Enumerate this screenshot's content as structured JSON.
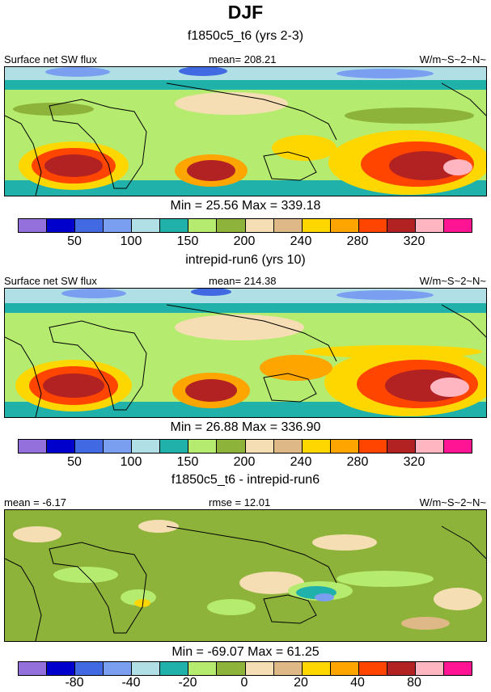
{
  "title": "DJF",
  "colors": [
    "#9370db",
    "#0000cd",
    "#4169e1",
    "#7b9ff0",
    "#b0e0e6",
    "#20b2aa",
    "#b5eb6e",
    "#8db33a",
    "#f5deb3",
    "#deb887",
    "#ffd700",
    "#ffa500",
    "#ff4500",
    "#b22222",
    "#ffb6c1",
    "#ff1493"
  ],
  "panels": [
    {
      "subtitle": "f1850c5_t6 (yrs 2-3)",
      "left": "Surface net SW flux",
      "center": "mean= 208.21",
      "right": "W/m~S~2~N~",
      "minmax": "Min =  25.56 Max = 339.18",
      "ticks": [
        "50",
        "100",
        "150",
        "200",
        "240",
        "280",
        "320"
      ],
      "kind": "field"
    },
    {
      "subtitle": "intrepid-run6 (yrs 10)",
      "left": "Surface net SW flux",
      "center": "mean= 214.38",
      "right": "W/m~S~2~N~",
      "minmax": "Min =  26.88 Max = 336.90",
      "ticks": [
        "50",
        "100",
        "150",
        "200",
        "240",
        "280",
        "320"
      ],
      "kind": "field"
    },
    {
      "subtitle": "f1850c5_t6 - intrepid-run6",
      "left": "mean =  -6.17",
      "center": "rmse =  12.01",
      "right": "W/m~S~2~N~",
      "minmax": "Min = -69.07 Max =  61.25",
      "ticks": [
        "-80",
        "-40",
        "-20",
        "0",
        "20",
        "40",
        "80"
      ],
      "kind": "diff"
    }
  ]
}
